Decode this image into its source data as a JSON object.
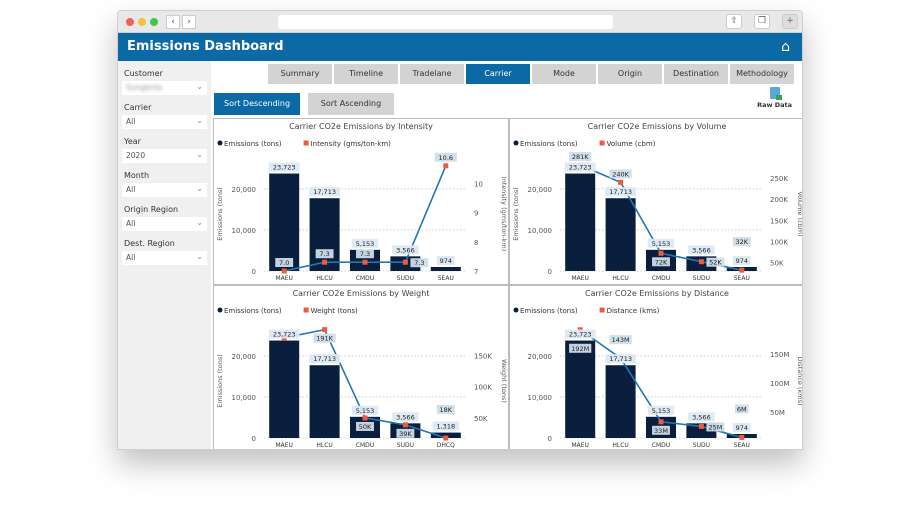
{
  "header": {
    "title": "Emissions Dashboard",
    "home_icon": "home-icon"
  },
  "filters": [
    {
      "label": "Customer",
      "value": "Sungenta"
    },
    {
      "label": "Carrier",
      "value": "All"
    },
    {
      "label": "Year",
      "value": "2020"
    },
    {
      "label": "Month",
      "value": "All"
    },
    {
      "label": "Origin Region",
      "value": "All"
    },
    {
      "label": "Dest. Region",
      "value": "All"
    }
  ],
  "tabs": [
    "Summary",
    "Timeline",
    "Tradelane",
    "Carrier",
    "Mode",
    "Origin",
    "Destination",
    "Methodology"
  ],
  "active_tab": "Carrier",
  "sort": {
    "desc": "Sort Descending",
    "asc": "Sort Ascending"
  },
  "raw_data": "Raw Data",
  "colors": {
    "accent": "#0b6aa6",
    "bar": "#0a1f3d",
    "line": "#1f77b4",
    "marker": "#f05a3c"
  },
  "chart_data": [
    {
      "type": "bar+line",
      "title": "Carrier CO2e Emissions by Intensity",
      "categories": [
        "MAEU",
        "HLCU",
        "CMDU",
        "SUDU",
        "SEAU"
      ],
      "series": [
        {
          "name": "Emissions (tons)",
          "values": [
            23723,
            17713,
            5153,
            3566,
            974
          ],
          "labels": [
            "23,723",
            "17,713",
            "5,153",
            "3,566",
            "974"
          ]
        },
        {
          "name": "Intensity (gms/ton-km)",
          "values": [
            7.0,
            7.3,
            7.3,
            7.3,
            10.6
          ],
          "labels": [
            "7.0",
            "7.3",
            "7.3",
            "7.3",
            "10.6"
          ]
        }
      ],
      "ylabel": "Emissions (tons)",
      "y2label": "Intensity (gms/ton-km)",
      "ylim": [
        0,
        27750
      ],
      "yticks": [
        0,
        10000,
        20000
      ],
      "yticklabels": [
        "0",
        "10,000",
        "20,000"
      ],
      "y2lim": [
        7,
        10.9
      ],
      "y2ticks": [
        7,
        8,
        9,
        10
      ],
      "y2ticklabels": [
        "7",
        "8",
        "9",
        "10"
      ]
    },
    {
      "type": "bar+line",
      "title": "Carrier CO2e Emissions by Volume",
      "categories": [
        "MAEU",
        "HLCU",
        "CMDU",
        "SUDU",
        "SEAU"
      ],
      "series": [
        {
          "name": "Emissions (tons)",
          "values": [
            23723,
            17713,
            5153,
            3566,
            974
          ],
          "labels": [
            "23,723",
            "17,713",
            "5,153",
            "3,566",
            "974"
          ]
        },
        {
          "name": "Volume (cbm)",
          "values": [
            281000,
            240000,
            72000,
            52000,
            32000
          ],
          "labels": [
            "281K",
            "240K",
            "72K",
            "52K",
            "32K"
          ]
        }
      ],
      "ylabel": "Emissions (tons)",
      "y2label": "Volume (cbm)",
      "ylim": [
        0,
        27750
      ],
      "yticks": [
        0,
        10000,
        20000
      ],
      "yticklabels": [
        "0",
        "10,000",
        "20,000"
      ],
      "y2lim": [
        30000,
        300000
      ],
      "y2ticks": [
        50000,
        100000,
        150000,
        200000,
        250000
      ],
      "y2ticklabels": [
        "50K",
        "100K",
        "150K",
        "200K",
        "250K"
      ]
    },
    {
      "type": "bar+line",
      "title": "Carrier CO2e Emissions by Weight",
      "categories": [
        "MAEU",
        "HLCU",
        "CMDU",
        "SUDU",
        "DHCQ"
      ],
      "series": [
        {
          "name": "Emissions (tons)",
          "values": [
            23723,
            17713,
            5153,
            3566,
            1318
          ],
          "labels": [
            "23,723",
            "17,713",
            "5,153",
            "3,566",
            "1,318"
          ]
        },
        {
          "name": "Weight (tons)",
          "values": [
            178000,
            191000,
            50000,
            39000,
            18000
          ],
          "labels": [
            "",
            "191K",
            "50K",
            "39K",
            "18K"
          ]
        }
      ],
      "ylabel": "Emissions (tons)",
      "y2label": "Weight (tons)",
      "ylim": [
        0,
        27750
      ],
      "yticks": [
        0,
        10000,
        20000
      ],
      "yticklabels": [
        "0",
        "10,000",
        "20,000"
      ],
      "y2lim": [
        18000,
        200000
      ],
      "y2ticks": [
        50000,
        100000,
        150000
      ],
      "y2ticklabels": [
        "50K",
        "100K",
        "150K"
      ]
    },
    {
      "type": "bar+line",
      "title": "Carrier CO2e Emissions by Distance",
      "categories": [
        "MAEU",
        "HLCU",
        "CMDU",
        "SUDU",
        "SEAU"
      ],
      "series": [
        {
          "name": "Emissions (tons)",
          "values": [
            23723,
            17713,
            5153,
            3566,
            974
          ],
          "labels": [
            "23,723",
            "17,713",
            "5,153",
            "3,566",
            "974"
          ]
        },
        {
          "name": "Distance (kms)",
          "values": [
            192000000,
            143000000,
            33000000,
            25000000,
            6000000
          ],
          "labels": [
            "192M",
            "143M",
            "33M",
            "25M",
            "6M"
          ]
        }
      ],
      "ylabel": "",
      "y2label": "Distance (kms)",
      "ylim": [
        0,
        27750
      ],
      "yticks": [
        0,
        10000,
        20000
      ],
      "yticklabels": [
        "0",
        "10,000",
        "20,000"
      ],
      "y2lim": [
        5000000,
        202000000
      ],
      "y2ticks": [
        50000000,
        100000000,
        150000000
      ],
      "y2ticklabels": [
        "50M",
        "100M",
        "150M"
      ]
    }
  ]
}
